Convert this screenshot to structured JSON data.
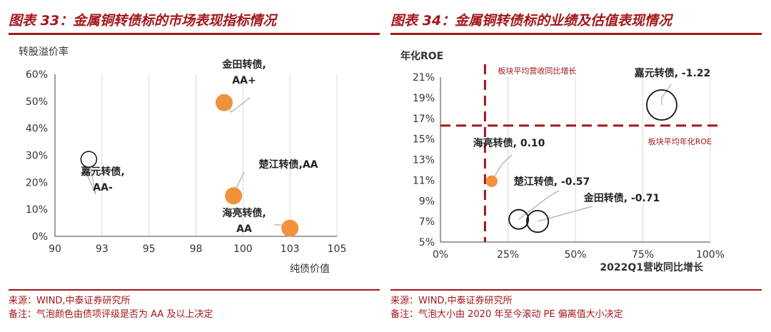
{
  "colors": {
    "accent": "#a4161a",
    "orange": "#f0923b",
    "grid": "#d9d9d9",
    "axis": "#404040"
  },
  "left": {
    "title": "图表 33：金属铜转债标的市场表现指标情况",
    "source": "来源：WIND,中泰证券研究所",
    "note": "备注：气泡颜色由债项评级是否为 AA 及以上决定"
  },
  "right": {
    "title": "图表 34：金属铜转债标的业绩及估值表现情况",
    "source": "来源：WIND,中泰证券研究所",
    "note": "备注：气泡大小由 2020 年至今滚动 PE 偏离值大小决定"
  },
  "chart_data": [
    {
      "type": "scatter",
      "title": "",
      "xlabel": "纯债价值",
      "ylabel": "转股溢价率",
      "xlim": [
        90,
        105
      ],
      "ylim": [
        0,
        60
      ],
      "x_ticks": [
        "90",
        "93",
        "95",
        "98",
        "100",
        "103",
        "105"
      ],
      "x_tick_values": [
        90,
        92.5,
        95,
        97.5,
        100,
        102.5,
        105
      ],
      "y_ticks": [
        "0%",
        "10%",
        "20%",
        "30%",
        "40%",
        "50%",
        "60%"
      ],
      "y_tick_values": [
        0,
        10,
        20,
        30,
        40,
        50,
        60
      ],
      "grid": "vertical",
      "points": [
        {
          "label": "金田转债，AA+",
          "label_lines": [
            "金田转债,",
            "AA+"
          ],
          "x": 99.0,
          "y": 49.5,
          "rating_high": true
        },
        {
          "label": "嘉元转债，AA-",
          "label_lines": [
            "嘉元转债,",
            "AA-"
          ],
          "x": 91.8,
          "y": 28.5,
          "rating_high": false
        },
        {
          "label": "楚江转债,AA",
          "label_lines": [
            "楚江转债,AA"
          ],
          "x": 99.5,
          "y": 15.0,
          "rating_high": true
        },
        {
          "label": "海亮转债，AA",
          "label_lines": [
            "海亮转债,",
            "AA"
          ],
          "x": 102.5,
          "y": 3.0,
          "rating_high": true
        }
      ]
    },
    {
      "type": "scatter",
      "title": "",
      "xlabel": "2022Q1营收同比增长",
      "ylabel": "年化ROE",
      "xlim": [
        0,
        100
      ],
      "ylim": [
        5,
        21
      ],
      "x_ticks": [
        "0%",
        "25%",
        "50%",
        "75%",
        "100%"
      ],
      "x_tick_values": [
        0,
        25,
        50,
        75,
        100
      ],
      "y_ticks": [
        "5%",
        "7%",
        "9%",
        "11%",
        "13%",
        "15%",
        "17%",
        "19%",
        "21%"
      ],
      "y_tick_values": [
        5,
        7,
        9,
        11,
        13,
        15,
        17,
        19,
        21
      ],
      "grid": "vertical",
      "reference_lines": [
        {
          "orientation": "vertical",
          "value": 16.5,
          "label": "板块平均营收同比增长"
        },
        {
          "orientation": "horizontal",
          "value": 16.3,
          "label": "板块平均年化ROE"
        }
      ],
      "points": [
        {
          "label": "嘉元转债, -1.22",
          "x": 82,
          "y": 18.3,
          "pe_deviation": -1.22,
          "filled": false
        },
        {
          "label": "海亮转债, 0.10",
          "x": 19,
          "y": 10.9,
          "pe_deviation": 0.1,
          "filled": true
        },
        {
          "label": "楚江转债, -0.57",
          "x": 29,
          "y": 7.2,
          "pe_deviation": -0.57,
          "filled": false
        },
        {
          "label": "金田转债, -0.71",
          "x": 36,
          "y": 7.0,
          "pe_deviation": -0.71,
          "filled": false
        }
      ]
    }
  ]
}
